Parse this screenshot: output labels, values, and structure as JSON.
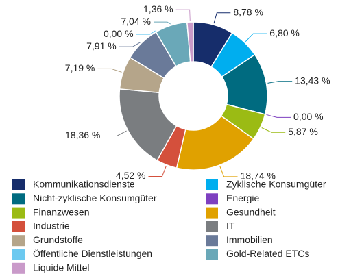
{
  "chart_data": {
    "type": "donut",
    "categories": [
      "Kommunikationsdienste",
      "Zyklische Konsumgüter",
      "Nicht-zyklische Konsumgüter",
      "Energie",
      "Finanzwesen",
      "Gesundheit",
      "Industrie",
      "IT",
      "Grundstoffe",
      "Immobilien",
      "Öffentliche Dienstleistungen",
      "Gold-Related ETCs",
      "Liquide Mittel"
    ],
    "values": [
      8.78,
      6.8,
      13.43,
      0.0,
      5.87,
      18.74,
      4.52,
      18.36,
      7.19,
      7.91,
      0.0,
      7.04,
      1.36
    ],
    "value_labels": [
      "8,78 %",
      "6,80 %",
      "13,43 %",
      "0,00 %",
      "5,87 %",
      "18,74 %",
      "4,52 %",
      "18,36 %",
      "7,19 %",
      "7,91 %",
      "0,00 %",
      "7,04 %",
      "1,36 %"
    ],
    "colors": [
      "#162d6b",
      "#00aeef",
      "#006b80",
      "#7e40c0",
      "#9bbb14",
      "#e0a100",
      "#d4503c",
      "#7a7d80",
      "#b5a58a",
      "#6a7a99",
      "#6cc9f0",
      "#6aa8b8",
      "#c99ac9"
    ],
    "legend": "bottom"
  }
}
